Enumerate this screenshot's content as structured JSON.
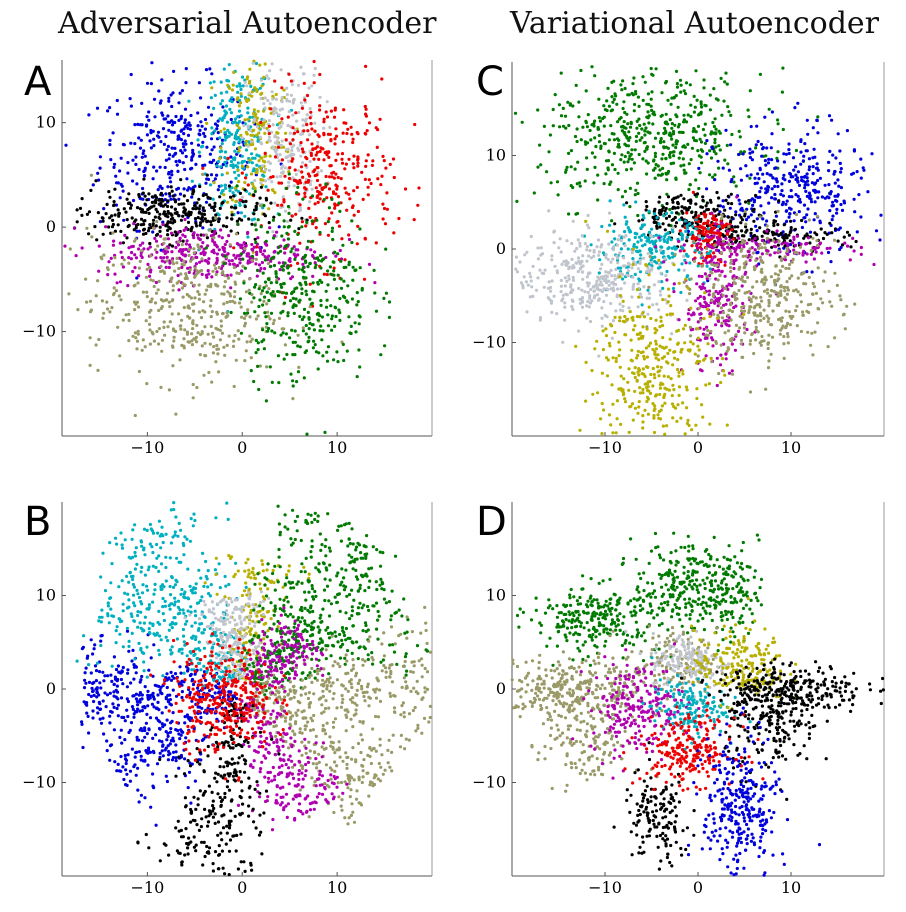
{
  "figure": {
    "col_titles": [
      "Adversarial Autoencoder",
      "Variational Autoencoder"
    ]
  },
  "chart_data": [
    {
      "panel": "A",
      "type": "scatter",
      "model": "Adversarial Autoencoder",
      "xlim": [
        -19,
        20
      ],
      "ylim": [
        -20,
        16
      ],
      "xticks": [
        -10,
        0,
        10
      ],
      "yticks": [
        -10,
        0,
        10
      ],
      "clusters": [
        {
          "color": "#0000dd",
          "cx": -7,
          "cy": 7,
          "sx": 4,
          "sy": 3.5,
          "n": 340
        },
        {
          "color": "#00b0c0",
          "cx": -0.5,
          "cy": 8,
          "sx": 1.8,
          "sy": 4,
          "n": 240
        },
        {
          "color": "#b8b000",
          "cx": 1.5,
          "cy": 9,
          "sx": 1.8,
          "sy": 4,
          "n": 160
        },
        {
          "color": "#c0c4cc",
          "cx": 4.5,
          "cy": 8,
          "sx": 2,
          "sy": 4,
          "n": 230
        },
        {
          "color": "#ee0000",
          "cx": 9,
          "cy": 5,
          "sx": 3.5,
          "sy": 4,
          "n": 320
        },
        {
          "color": "#000000",
          "cx": -8,
          "cy": 1.2,
          "sx": 5,
          "sy": 1.3,
          "n": 320
        },
        {
          "color": "#b000b0",
          "cx": -3,
          "cy": -2.5,
          "sx": 6,
          "sy": 1.3,
          "n": 340
        },
        {
          "color": "#9a9a68",
          "cx": -6,
          "cy": -7.5,
          "sx": 5,
          "sy": 3.5,
          "n": 420
        },
        {
          "color": "#007a00",
          "cx": 6.5,
          "cy": -6,
          "sx": 3.5,
          "sy": 4.5,
          "n": 360
        }
      ]
    },
    {
      "panel": "B",
      "type": "scatter",
      "model": "Adversarial Autoencoder",
      "xlim": [
        -19,
        20
      ],
      "ylim": [
        -20,
        20
      ],
      "xticks": [
        -10,
        0,
        10
      ],
      "yticks": [
        -10,
        0,
        10
      ],
      "clusters": [
        {
          "color": "#0000dd",
          "arm_angle": 180,
          "arm_len": 16,
          "n": 300
        },
        {
          "color": "#0000dd",
          "arm_angle": 215,
          "arm_len": 15,
          "n": 220
        },
        {
          "color": "#00b0c0",
          "arm_angle": 118,
          "arm_len": 20,
          "n": 240
        },
        {
          "color": "#00b0c0",
          "arm_angle": 143,
          "arm_len": 16,
          "n": 220
        },
        {
          "color": "#b8b000",
          "arm_angle": 82,
          "arm_len": 13,
          "n": 150
        },
        {
          "color": "#c0c4cc",
          "arm_angle": 100,
          "arm_len": 9,
          "n": 200
        },
        {
          "color": "#007a00",
          "arm_angle": 58,
          "arm_len": 20,
          "n": 260
        },
        {
          "color": "#007a00",
          "arm_angle": 30,
          "arm_len": 18,
          "n": 260
        },
        {
          "color": "#9a9a68",
          "arm_angle": 0,
          "arm_len": 19,
          "n": 280
        },
        {
          "color": "#9a9a68",
          "arm_angle": -35,
          "arm_len": 17,
          "n": 240
        },
        {
          "color": "#b000b0",
          "arm_angle": -62,
          "arm_len": 14,
          "n": 240
        },
        {
          "color": "#b000b0",
          "arm_angle": 40,
          "arm_len": 8,
          "n": 160
        },
        {
          "color": "#000000",
          "arm_angle": -103,
          "arm_len": 19,
          "n": 280
        },
        {
          "color": "#ee0000",
          "cx": -2,
          "cy": -1,
          "sx": 2.6,
          "sy": 2.8,
          "n": 320
        }
      ]
    },
    {
      "panel": "C",
      "type": "scatter",
      "model": "Variational Autoencoder",
      "xlim": [
        -20,
        20
      ],
      "ylim": [
        -20,
        20
      ],
      "xticks": [
        -10,
        0,
        10
      ],
      "yticks": [
        -10,
        0,
        10
      ],
      "clusters": [
        {
          "color": "#007a00",
          "cx": -5,
          "cy": 12,
          "sx": 6,
          "sy": 3.5,
          "n": 520
        },
        {
          "color": "#0000dd",
          "cx": 10,
          "cy": 6,
          "sx": 4,
          "sy": 3.5,
          "n": 360
        },
        {
          "color": "#000000",
          "cx": 0,
          "cy": 3.5,
          "sx": 3.5,
          "sy": 1.2,
          "n": 200
        },
        {
          "color": "#000000",
          "cx": 8,
          "cy": 1.5,
          "sx": 4,
          "sy": 0.8,
          "n": 120
        },
        {
          "color": "#ee0000",
          "cx": 1,
          "cy": 1.5,
          "sx": 1.2,
          "sy": 1.5,
          "n": 140
        },
        {
          "color": "#00b0c0",
          "cx": -5,
          "cy": 0,
          "sx": 3,
          "sy": 1.8,
          "n": 220
        },
        {
          "color": "#c0c4cc",
          "cx": -11,
          "cy": -3,
          "sx": 4.5,
          "sy": 2.5,
          "n": 360
        },
        {
          "color": "#b000b0",
          "cx": 2,
          "cy": -6,
          "sx": 1.8,
          "sy": 3.5,
          "n": 200
        },
        {
          "color": "#b000b0",
          "cx": 7,
          "cy": 0,
          "sx": 5,
          "sy": 0.8,
          "n": 140
        },
        {
          "color": "#9a9a68",
          "cx": 7,
          "cy": -5,
          "sx": 4,
          "sy": 3.5,
          "n": 380
        },
        {
          "color": "#b8b000",
          "cx": -5,
          "cy": -13,
          "sx": 3,
          "sy": 5,
          "n": 360
        }
      ]
    },
    {
      "panel": "D",
      "type": "scatter",
      "model": "Variational Autoencoder",
      "xlim": [
        -20,
        20
      ],
      "ylim": [
        -20,
        20
      ],
      "xticks": [
        -10,
        0,
        10
      ],
      "yticks": [
        -10,
        0,
        10
      ],
      "clusters": [
        {
          "color": "#007a00",
          "cx": -11,
          "cy": 7.5,
          "sx": 3.5,
          "sy": 1.8,
          "n": 260
        },
        {
          "color": "#007a00",
          "cx": -2,
          "cy": 11,
          "sx": 2.5,
          "sy": 2.2,
          "n": 200
        },
        {
          "color": "#007a00",
          "cx": 3.5,
          "cy": 10.5,
          "sx": 1.5,
          "sy": 2.5,
          "n": 140
        },
        {
          "color": "#9a9a68",
          "cx": -14,
          "cy": 0,
          "sx": 4,
          "sy": 1.6,
          "n": 300
        },
        {
          "color": "#9a9a68",
          "cx": -12,
          "cy": -6,
          "sx": 2.5,
          "sy": 2.5,
          "n": 140
        },
        {
          "color": "#9a9a68",
          "cx": -3,
          "cy": 2.5,
          "sx": 2.5,
          "sy": 2,
          "n": 140
        },
        {
          "color": "#c0c4cc",
          "cx": -1,
          "cy": 3,
          "sx": 2,
          "sy": 1.5,
          "n": 160
        },
        {
          "color": "#b000b0",
          "cx": -6.5,
          "cy": -2,
          "sx": 2.5,
          "sy": 2.5,
          "n": 220
        },
        {
          "color": "#00b0c0",
          "cx": -1,
          "cy": -2,
          "sx": 2,
          "sy": 1.5,
          "n": 160
        },
        {
          "color": "#b8b000",
          "cx": 4.5,
          "cy": 2.5,
          "sx": 2.5,
          "sy": 2,
          "n": 200
        },
        {
          "color": "#000000",
          "cx": 10,
          "cy": 0,
          "sx": 4,
          "sy": 1.3,
          "n": 260
        },
        {
          "color": "#000000",
          "cx": 8,
          "cy": -4,
          "sx": 2.5,
          "sy": 2.5,
          "n": 180
        },
        {
          "color": "#000000",
          "cx": -4.5,
          "cy": -14,
          "sx": 1.8,
          "sy": 2.5,
          "n": 140
        },
        {
          "color": "#ee0000",
          "cx": -1,
          "cy": -6.5,
          "sx": 2.5,
          "sy": 1.8,
          "n": 220
        },
        {
          "color": "#0000dd",
          "cx": 4.5,
          "cy": -13,
          "sx": 2,
          "sy": 4,
          "n": 300
        }
      ]
    }
  ]
}
